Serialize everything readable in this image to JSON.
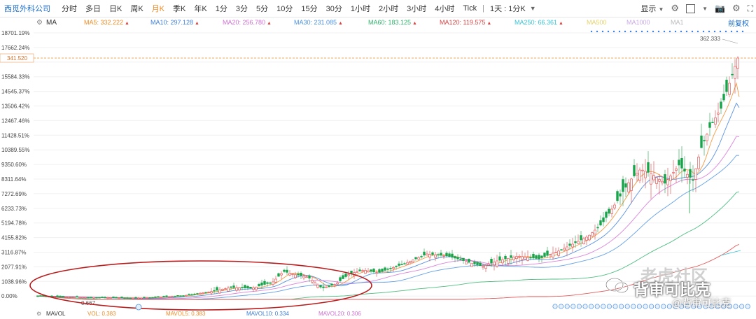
{
  "toolbar": {
    "stock_name": "西觅外科公司",
    "periods": [
      "分时",
      "多日",
      "日K",
      "周K",
      "月K",
      "季K",
      "年K",
      "1分",
      "3分",
      "5分",
      "10分",
      "15分",
      "30分",
      "1小时",
      "2小时",
      "3小时",
      "4小时",
      "Tick"
    ],
    "active_period": "月K",
    "custom_period": "1天 : 1分K",
    "display_label": "显示"
  },
  "indicators": {
    "ma_label": "MA",
    "items": [
      {
        "label": "MA5: 332.222",
        "color": "#f08a24"
      },
      {
        "label": "MA10: 297.128",
        "color": "#3d7edb"
      },
      {
        "label": "MA20: 256.780",
        "color": "#d36fd6"
      },
      {
        "label": "MA30: 231.085",
        "color": "#4a90e2"
      },
      {
        "label": "MA60: 183.125",
        "color": "#2fb36b"
      },
      {
        "label": "MA120: 119.575",
        "color": "#e04040"
      },
      {
        "label": "MA250: 66.361",
        "color": "#33c4d6"
      },
      {
        "label": "MA500",
        "color": "#e8d26b"
      },
      {
        "label": "MA1000",
        "color": "#c9a9ea"
      },
      {
        "label": "MA1",
        "color": "#bbbbbb"
      }
    ],
    "adjust_label": "前复权"
  },
  "yaxis": {
    "labels": [
      "18701.19%",
      "17662.24%",
      "",
      "15584.33%",
      "14545.37%",
      "13506.42%",
      "12467.46%",
      "11428.51%",
      "10389.55%",
      "9350.60%",
      "8311.64%",
      "7272.69%",
      "6233.73%",
      "5194.78%",
      "4155.82%",
      "3116.87%",
      "2077.91%",
      "1038.96%",
      "0.00%"
    ],
    "current_price": "341.520"
  },
  "annotations": {
    "high_value": "362.333",
    "low_value": "0.667"
  },
  "bottom": {
    "mavol_label": "MAVOL",
    "vol": "VOL: 0.383",
    "mavol5": "MAVOL5: 0.383",
    "mavol10": "MAVOL10: 0.334",
    "mavol20": "MAVOL20: 0.306"
  },
  "watermark": {
    "line1": "老虎社区",
    "line2": "背审可比克",
    "line3": "@背审可比克"
  }
}
